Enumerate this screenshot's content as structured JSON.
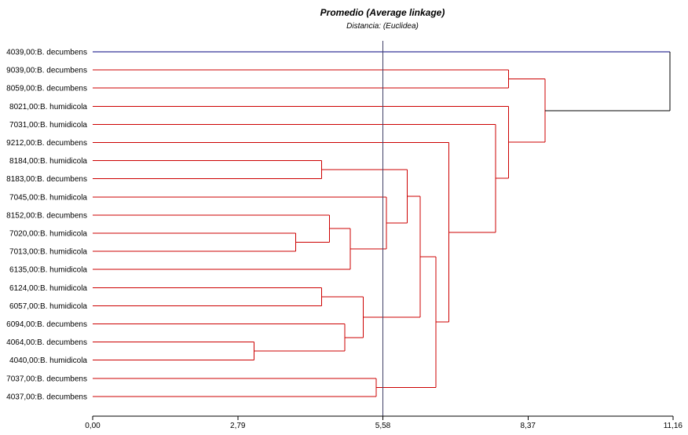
{
  "chart_data": {
    "type": "dendrogram",
    "title": "Promedio (Average linkage)",
    "subtitle": "Distancia: (Euclidea)",
    "xlim": [
      0,
      11.16
    ],
    "x_ticks": [
      {
        "value": 0,
        "label": "0,00"
      },
      {
        "value": 2.79,
        "label": "2,79"
      },
      {
        "value": 5.58,
        "label": "5,58"
      },
      {
        "value": 8.37,
        "label": "8,37"
      },
      {
        "value": 11.16,
        "label": "11,16"
      }
    ],
    "cut_line": 5.58,
    "leaves": [
      "4039,00:B. decumbens",
      "9039,00:B. decumbens",
      "8059,00:B. decumbens",
      "8021,00:B. humidicola",
      "7031,00:B. humidicola",
      "9212,00:B. decumbens",
      "8184,00:B. humidicola",
      "8183,00:B. decumbens",
      "7045,00:B. humidicola",
      "8152,00:B. decumbens",
      "7020,00:B. humidicola",
      "7013,00:B. humidicola",
      "6135,00:B. humidicola",
      "6124,00:B. humidicola",
      "6057,00:B. humidicola",
      "6094,00:B. decumbens",
      "4064,00:B. decumbens",
      "4040,00:B. humidicola",
      "7037,00:B. decumbens",
      "4037,00:B. decumbens"
    ],
    "merges": [
      {
        "id": "n1",
        "a": 16,
        "b": 17,
        "height": 3.1
      },
      {
        "id": "n2",
        "a": 10,
        "b": 11,
        "height": 3.9
      },
      {
        "id": "n3",
        "a": 6,
        "b": 7,
        "height": 4.4
      },
      {
        "id": "n4",
        "a": 13,
        "b": 14,
        "height": 4.4
      },
      {
        "id": "n5",
        "a": 9,
        "b": "n2",
        "height": 4.55
      },
      {
        "id": "n6",
        "a": 15,
        "b": "n1",
        "height": 4.85
      },
      {
        "id": "n7",
        "a": "n5",
        "b": 12,
        "height": 4.95
      },
      {
        "id": "n8",
        "a": "n4",
        "b": "n6",
        "height": 5.2
      },
      {
        "id": "n9",
        "a": 18,
        "b": 19,
        "height": 5.45
      },
      {
        "id": "n10",
        "a": 8,
        "b": "n7",
        "height": 5.65
      },
      {
        "id": "n11",
        "a": "n3",
        "b": "n10",
        "height": 6.05
      },
      {
        "id": "n12",
        "a": "n11",
        "b": "n8",
        "height": 6.3
      },
      {
        "id": "n13",
        "a": "n12",
        "b": "n9",
        "height": 6.6
      },
      {
        "id": "n14",
        "a": 5,
        "b": "n13",
        "height": 6.85
      },
      {
        "id": "n15",
        "a": 4,
        "b": "n14",
        "height": 7.75
      },
      {
        "id": "n16",
        "a": 1,
        "b": 2,
        "height": 8.0
      },
      {
        "id": "n17",
        "a": 3,
        "b": "n15",
        "height": 8.0
      },
      {
        "id": "n18",
        "a": "n16",
        "b": "n17",
        "height": 8.7
      },
      {
        "id": "n19",
        "a": 0,
        "b": "n18",
        "height": 11.1
      }
    ],
    "colors": {
      "cluster": "#cc0000",
      "outlier_branch": "#00007f",
      "top_link": "#000000",
      "axis": "#000000",
      "cut_line": "#3f3f66"
    }
  }
}
